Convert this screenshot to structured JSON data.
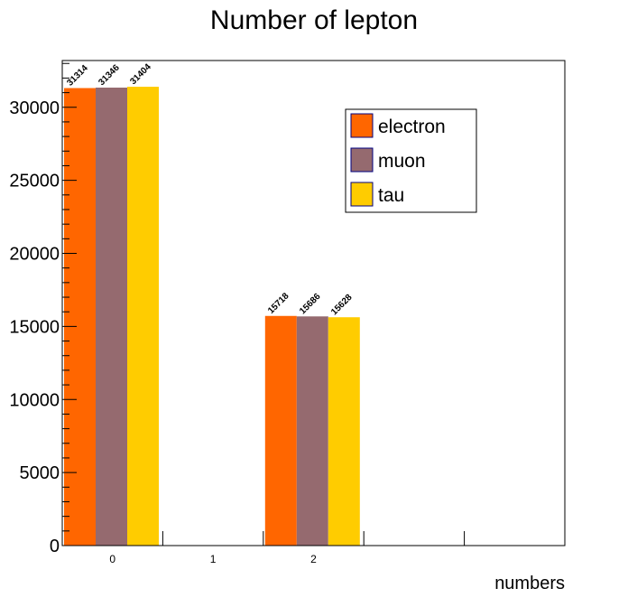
{
  "chart_data": {
    "type": "bar",
    "title": "Number of lepton",
    "xlabel": "numbers",
    "ylabel": "",
    "ylim": [
      0,
      33200
    ],
    "xlim": [
      -0.5,
      4.5
    ],
    "y_ticks": [
      0,
      5000,
      10000,
      15000,
      20000,
      25000,
      30000
    ],
    "x_tick_labels": [
      "0",
      "1",
      "2"
    ],
    "categories": [
      "0",
      "2"
    ],
    "series": [
      {
        "name": "electron",
        "color": "#ff6600",
        "values": [
          31314,
          15718
        ]
      },
      {
        "name": "muon",
        "color": "#956a6f",
        "values": [
          31346,
          15686
        ]
      },
      {
        "name": "tau",
        "color": "#ffcc00",
        "values": [
          31404,
          15628
        ]
      }
    ],
    "data_labels": [
      [
        "31314",
        "15718"
      ],
      [
        "31346",
        "15686"
      ],
      [
        "31404",
        "15628"
      ]
    ],
    "legend_position": "top-right",
    "grid": false
  }
}
